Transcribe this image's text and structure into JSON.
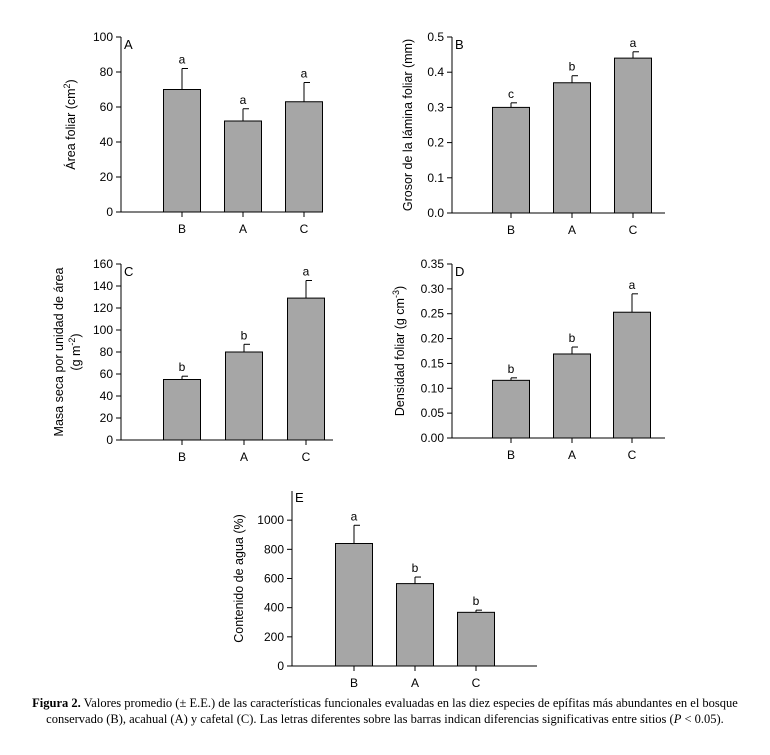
{
  "chart_data": [
    {
      "type": "bar",
      "panel_letter": "A",
      "ylabel": "Área foliar (cm²)",
      "ylabel_parts": {
        "main": "Área foliar (cm",
        "sup": "2",
        "end": ")"
      },
      "categories": [
        "B",
        "A",
        "C"
      ],
      "values": [
        70,
        52,
        63
      ],
      "errors": [
        12,
        7,
        11
      ],
      "letters": [
        "a",
        "a",
        "a"
      ],
      "ylim": [
        0,
        100
      ],
      "yticks": [
        "0",
        "20",
        "40",
        "60",
        "80",
        "100"
      ],
      "ytick_values": [
        0,
        20,
        40,
        60,
        80,
        100
      ]
    },
    {
      "type": "bar",
      "panel_letter": "B",
      "ylabel": "Grosor de la lámina foliar (mm)",
      "ylabel_parts": {
        "main": "Grosor de la lámina foliar (mm)",
        "sup": "",
        "end": ""
      },
      "categories": [
        "B",
        "A",
        "C"
      ],
      "values": [
        0.3,
        0.37,
        0.44
      ],
      "errors": [
        0.013,
        0.02,
        0.018
      ],
      "letters": [
        "c",
        "b",
        "a"
      ],
      "ylim": [
        0,
        0.5
      ],
      "yticks": [
        "0.0",
        "0.1",
        "0.2",
        "0.3",
        "0.4",
        "0.5"
      ],
      "ytick_values": [
        0,
        0.1,
        0.2,
        0.3,
        0.4,
        0.5
      ]
    },
    {
      "type": "bar",
      "panel_letter": "C",
      "ylabel": "Masa seca por unidad de área (g m⁻²)",
      "ylabel_parts": {
        "main": "Masa seca por unidad de área",
        "line2_main": "(g m",
        "sup": "-2",
        "end": ")"
      },
      "categories": [
        "B",
        "A",
        "C"
      ],
      "values": [
        55,
        80,
        129
      ],
      "errors": [
        3,
        7,
        16
      ],
      "letters": [
        "b",
        "b",
        "a"
      ],
      "ylim": [
        0,
        160
      ],
      "yticks": [
        "0",
        "20",
        "40",
        "60",
        "80",
        "100",
        "120",
        "140",
        "160"
      ],
      "ytick_values": [
        0,
        20,
        40,
        60,
        80,
        100,
        120,
        140,
        160
      ]
    },
    {
      "type": "bar",
      "panel_letter": "D",
      "ylabel": "Densidad foliar (g cm⁻³)",
      "ylabel_parts": {
        "main": "Densidad foliar (g cm",
        "sup": "-3",
        "end": ")"
      },
      "categories": [
        "B",
        "A",
        "C"
      ],
      "values": [
        0.116,
        0.169,
        0.253
      ],
      "errors": [
        0.005,
        0.014,
        0.037
      ],
      "letters": [
        "b",
        "b",
        "a"
      ],
      "ylim": [
        0,
        0.35
      ],
      "yticks": [
        "0.00",
        "0.05",
        "0.10",
        "0.15",
        "0.20",
        "0.25",
        "0.30",
        "0.35"
      ],
      "ytick_values": [
        0,
        0.05,
        0.1,
        0.15,
        0.2,
        0.25,
        0.3,
        0.35
      ]
    },
    {
      "type": "bar",
      "panel_letter": "E",
      "ylabel": "Contenido de agua (%)",
      "ylabel_parts": {
        "main": "Contenido de agua (%)",
        "sup": "",
        "end": ""
      },
      "categories": [
        "B",
        "A",
        "C"
      ],
      "values": [
        840,
        565,
        368
      ],
      "errors": [
        125,
        45,
        15
      ],
      "letters": [
        "a",
        "b",
        "b"
      ],
      "ylim": [
        0,
        1200
      ],
      "yticks": [
        "0",
        "200",
        "400",
        "600",
        "800",
        "1000"
      ],
      "ytick_values": [
        0,
        200,
        400,
        600,
        800,
        1000
      ]
    }
  ],
  "colors": {
    "bar_fill": "#a6a6a6",
    "bar_stroke": "#000000"
  },
  "caption": {
    "label": "Figura 2.",
    "text": " Valores promedio (± E.E.) de las características funcionales evaluadas en las diez especies de epífitas más abundantes en el bosque conservado (B), acahual (A) y cafetal (C). Las letras diferentes sobre las barras indican diferencias significativas entre sitios (",
    "p_symbol": "P",
    "text_end": " < 0.05)."
  }
}
